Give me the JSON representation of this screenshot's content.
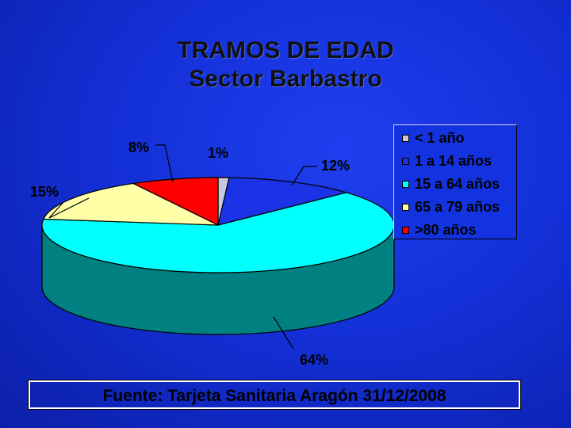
{
  "title_line1": "TRAMOS DE EDAD",
  "title_line2": "Sector Barbastro",
  "source": "Fuente: Tarjeta Sanitaria Aragón 31/12/2008",
  "chart_data": {
    "type": "pie",
    "style": "3d",
    "legend_placement": "right",
    "slices": [
      {
        "label": "< 1 año",
        "value": 1,
        "display": "1%",
        "color": "#c8c8e0"
      },
      {
        "label": "1 a 14 años",
        "value": 12,
        "display": "12%",
        "color": "#1a33e6"
      },
      {
        "label": "15 a 64 años",
        "value": 64,
        "display": "64%",
        "color": "#00ffff"
      },
      {
        "label": "65 a 79 años",
        "value": 15,
        "display": "15%",
        "color": "#ffffa8"
      },
      {
        "label": ">80 años",
        "value": 8,
        "display": "8%",
        "color": "#ff0000"
      }
    ]
  }
}
